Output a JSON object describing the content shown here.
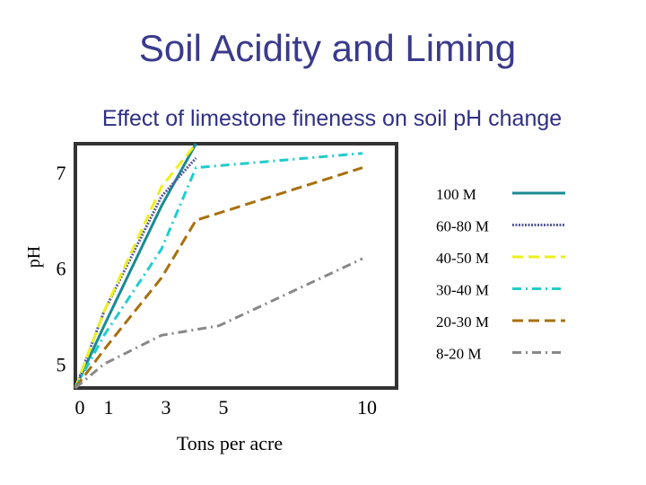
{
  "slide": {
    "title": "Soil Acidity and Liming"
  },
  "chart_data": {
    "type": "line",
    "title": "Effect of limestone fineness on soil pH change",
    "xlabel": "Tons per acre",
    "ylabel": "pH",
    "xlim": [
      0,
      11
    ],
    "ylim": [
      4.75,
      7.3
    ],
    "xticks": [
      {
        "value": 0,
        "label": "0"
      },
      {
        "value": 1,
        "label": "1"
      },
      {
        "value": 3,
        "label": "3"
      },
      {
        "value": 5,
        "label": "5"
      },
      {
        "value": 10,
        "label": "10"
      }
    ],
    "yticks": [
      {
        "value": 5,
        "label": "5"
      },
      {
        "value": 6,
        "label": "6"
      },
      {
        "value": 7,
        "label": "7"
      }
    ],
    "grid": false,
    "legend_position": "right",
    "series": [
      {
        "name": "100 M",
        "color": "#1a8a94",
        "dash": "",
        "x": [
          0,
          1,
          3,
          4.2
        ],
        "y": [
          4.75,
          5.4,
          6.65,
          7.3
        ]
      },
      {
        "name": "60-80 M",
        "color": "#555a99",
        "dash": "2 1.5",
        "x": [
          0,
          1,
          3,
          4.2
        ],
        "y": [
          4.75,
          5.55,
          6.75,
          7.15
        ]
      },
      {
        "name": "40-50 M",
        "color": "#eeee22",
        "dash": "12 6",
        "x": [
          0,
          1,
          3,
          4.2
        ],
        "y": [
          4.75,
          5.55,
          6.85,
          7.3
        ]
      },
      {
        "name": "30-40 M",
        "color": "#22cccc",
        "dash": "10 5 2 5",
        "x": [
          0,
          1,
          3,
          4.2,
          10
        ],
        "y": [
          4.75,
          5.3,
          6.2,
          7.05,
          7.2
        ]
      },
      {
        "name": "20-30 M",
        "color": "#a8700e",
        "dash": "12 6",
        "x": [
          0,
          1,
          3,
          4.2,
          10
        ],
        "y": [
          4.75,
          5.15,
          5.9,
          6.5,
          7.05
        ]
      },
      {
        "name": "8-20 M",
        "color": "#888888",
        "dash": "10 5 2 5",
        "x": [
          0,
          1,
          3,
          5,
          10
        ],
        "y": [
          4.75,
          5.0,
          5.3,
          5.4,
          6.1
        ]
      }
    ]
  }
}
